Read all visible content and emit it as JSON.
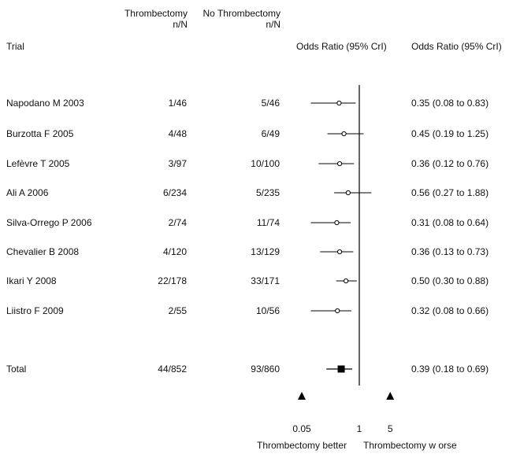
{
  "headers": {
    "trial": "Trial",
    "thrombectomy_line1": "Thrombectomy",
    "thrombectomy_line2": "n/N",
    "no_thrombectomy_line1": "No Thrombectomy",
    "no_thrombectomy_line2": "n/N",
    "odds_ratio_plot": "Odds Ratio (95% CrI)",
    "odds_ratio_text": "Odds Ratio (95% CrI)"
  },
  "chart_data": {
    "type": "forest",
    "scale": "log",
    "xlim": [
      0.05,
      5
    ],
    "reference_line": 1,
    "x_ticks": [
      "0.05",
      "1",
      "5"
    ],
    "x_tick_values": [
      0.05,
      1,
      5
    ],
    "direction_labels": {
      "left": "Thrombectomy better",
      "right": "Thrombectomy w orse"
    },
    "trials": [
      {
        "name": "Napodano M 2003",
        "thrombectomy": "1/46",
        "no_thrombectomy": "5/46",
        "or": 0.35,
        "lo": 0.08,
        "hi": 0.83,
        "or_text": "0.35 (0.08 to 0.83)"
      },
      {
        "name": "Burzotta F 2005",
        "thrombectomy": "4/48",
        "no_thrombectomy": "6/49",
        "or": 0.45,
        "lo": 0.19,
        "hi": 1.25,
        "or_text": "0.45 (0.19 to 1.25)"
      },
      {
        "name": "Lefèvre T 2005",
        "thrombectomy": "3/97",
        "no_thrombectomy": "10/100",
        "or": 0.36,
        "lo": 0.12,
        "hi": 0.76,
        "or_text": "0.36 (0.12 to 0.76)"
      },
      {
        "name": "Ali A 2006",
        "thrombectomy": "6/234",
        "no_thrombectomy": "5/235",
        "or": 0.56,
        "lo": 0.27,
        "hi": 1.88,
        "or_text": "0.56 (0.27 to 1.88)"
      },
      {
        "name": "Silva-Orrego P 2006",
        "thrombectomy": "2/74",
        "no_thrombectomy": "11/74",
        "or": 0.31,
        "lo": 0.08,
        "hi": 0.64,
        "or_text": "0.31 (0.08 to 0.64)"
      },
      {
        "name": "Chevalier B 2008",
        "thrombectomy": "4/120",
        "no_thrombectomy": "13/129",
        "or": 0.36,
        "lo": 0.13,
        "hi": 0.73,
        "or_text": "0.36 (0.13 to 0.73)"
      },
      {
        "name": "Ikari Y 2008",
        "thrombectomy": "22/178",
        "no_thrombectomy": "33/171",
        "or": 0.5,
        "lo": 0.3,
        "hi": 0.88,
        "or_text": "0.50 (0.30 to 0.88)"
      },
      {
        "name": "Liistro F 2009",
        "thrombectomy": "2/55",
        "no_thrombectomy": "10/56",
        "or": 0.32,
        "lo": 0.08,
        "hi": 0.66,
        "or_text": "0.32 (0.08 to 0.66)"
      }
    ],
    "total": {
      "name": "Total",
      "thrombectomy": "44/852",
      "no_thrombectomy": "93/860",
      "or": 0.39,
      "lo": 0.18,
      "hi": 0.69,
      "or_text": "0.39 (0.18 to 0.69)"
    }
  }
}
